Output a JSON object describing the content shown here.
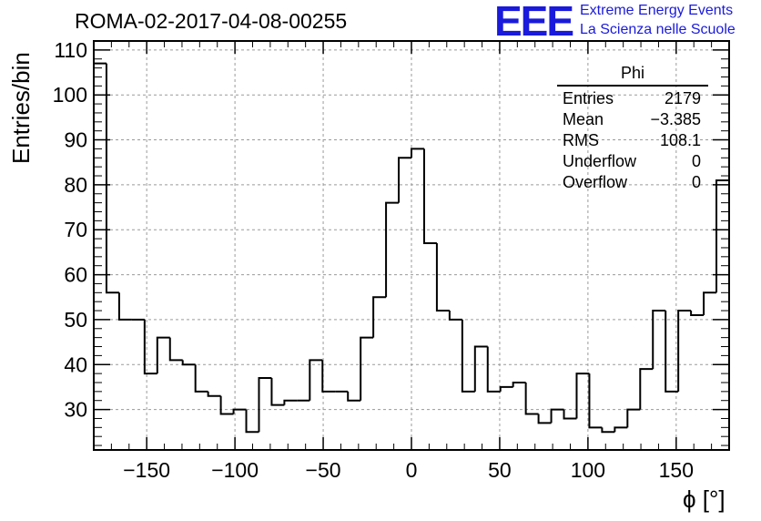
{
  "title": "ROMA-02-2017-04-08-00255",
  "logo": {
    "mark": "EEE",
    "line1": "Extreme Energy Events",
    "line2": "La Scienza nelle Scuole",
    "color": "#1a1adc"
  },
  "stats": {
    "header": "Phi",
    "rows": [
      {
        "label": "Entries",
        "value": "2179"
      },
      {
        "label": "Mean",
        "value": "−3.385"
      },
      {
        "label": "RMS",
        "value": "108.1"
      },
      {
        "label": "Underflow",
        "value": "0"
      },
      {
        "label": "Overflow",
        "value": "0"
      }
    ]
  },
  "chart_data": {
    "type": "histogram",
    "xlabel": "ϕ [°]",
    "ylabel": "Entries/bin",
    "xlim": [
      -180,
      180
    ],
    "ylim": [
      21,
      112
    ],
    "x_ticks": [
      -150,
      -100,
      -50,
      0,
      50,
      100,
      150
    ],
    "x_tick_labels": [
      "−150",
      "−100",
      "−50",
      "0",
      "50",
      "100",
      "150"
    ],
    "y_ticks": [
      30,
      40,
      50,
      60,
      70,
      80,
      90,
      100,
      110
    ],
    "y_tick_labels": [
      "30",
      "40",
      "50",
      "60",
      "70",
      "80",
      "90",
      "100",
      "110"
    ],
    "grid": true,
    "bin_edges_start": -180,
    "bin_width": 7.2,
    "values": [
      107,
      56,
      50,
      50,
      38,
      46,
      41,
      40,
      34,
      33,
      29,
      30,
      25,
      37,
      31,
      32,
      32,
      41,
      34,
      34,
      32,
      46,
      55,
      76,
      86,
      88,
      67,
      52,
      50,
      34,
      44,
      34,
      35,
      36,
      29,
      27,
      30,
      28,
      38,
      26,
      25,
      26,
      30,
      39,
      52,
      34,
      52,
      51,
      56,
      81
    ]
  }
}
